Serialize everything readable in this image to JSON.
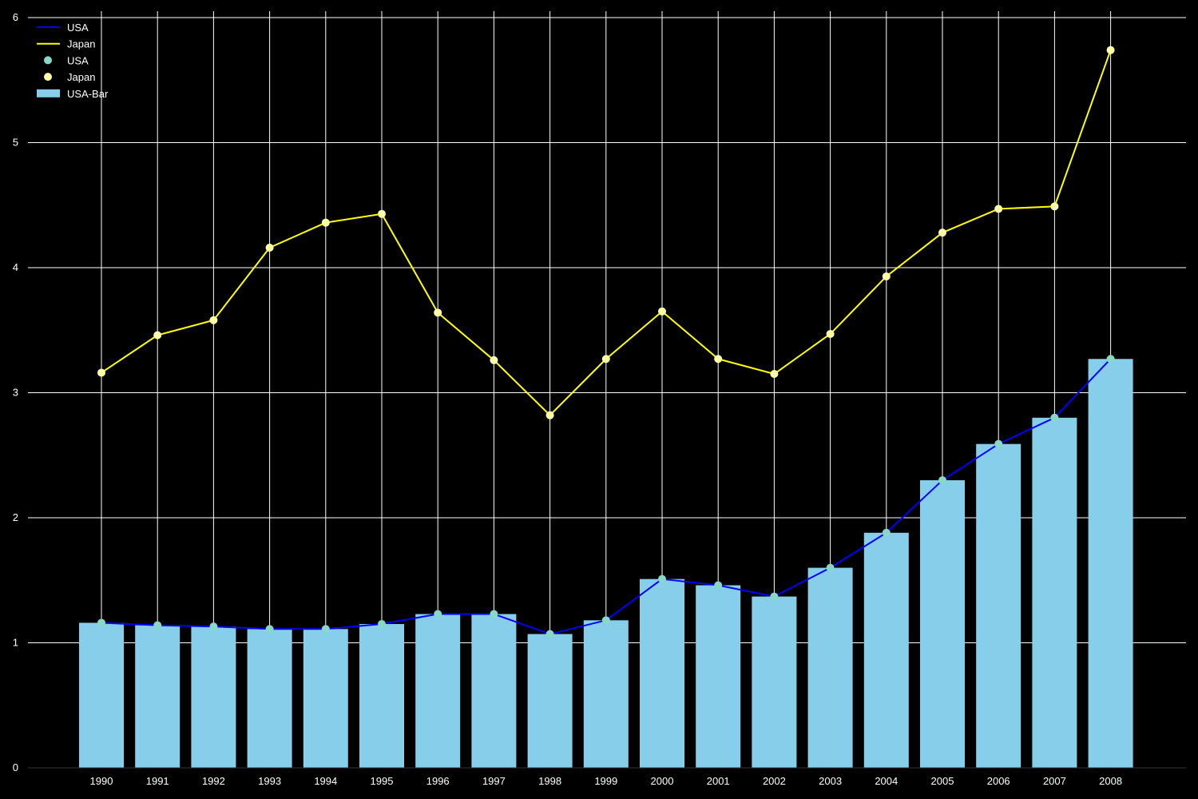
{
  "chart_data": {
    "type": "bar",
    "title": "",
    "xlabel": "",
    "ylabel": "",
    "x": [
      "1990",
      "1991",
      "1992",
      "1993",
      "1994",
      "1995",
      "1996",
      "1997",
      "1998",
      "1999",
      "2000",
      "2001",
      "2002",
      "2003",
      "2004",
      "2005",
      "2006",
      "2007",
      "2008"
    ],
    "ylim": [
      0,
      6
    ],
    "yticks": [
      0,
      1,
      2,
      3,
      4,
      5,
      6
    ],
    "grid": true,
    "legend_position": "top-left",
    "background": "#000000",
    "series": [
      {
        "name": "USA",
        "kind": "line",
        "color": "#0000ff",
        "values": [
          1.16,
          1.14,
          1.13,
          1.11,
          1.11,
          1.15,
          1.23,
          1.23,
          1.07,
          1.18,
          1.51,
          1.46,
          1.37,
          1.6,
          1.88,
          2.3,
          2.59,
          2.8,
          3.27
        ]
      },
      {
        "name": "Japan",
        "kind": "line",
        "color": "#ffff00",
        "values": [
          3.16,
          3.46,
          3.58,
          4.16,
          4.36,
          4.43,
          3.64,
          3.26,
          2.82,
          3.27,
          3.65,
          3.27,
          3.15,
          3.47,
          3.93,
          4.28,
          4.47,
          4.49,
          5.74
        ]
      },
      {
        "name": "USA",
        "kind": "scatter",
        "color": "#88d8c8",
        "values": [
          1.16,
          1.14,
          1.13,
          1.11,
          1.11,
          1.15,
          1.23,
          1.23,
          1.07,
          1.18,
          1.51,
          1.46,
          1.37,
          1.6,
          1.88,
          2.3,
          2.59,
          2.8,
          3.27
        ]
      },
      {
        "name": "Japan",
        "kind": "scatter",
        "color": "#ffffa8",
        "values": [
          3.16,
          3.46,
          3.58,
          4.16,
          4.36,
          4.43,
          3.64,
          3.26,
          2.82,
          3.27,
          3.65,
          3.27,
          3.15,
          3.47,
          3.93,
          4.28,
          4.47,
          4.49,
          5.74
        ]
      },
      {
        "name": "USA-Bar",
        "kind": "bar",
        "color": "#87ceeb",
        "values": [
          1.16,
          1.14,
          1.13,
          1.11,
          1.11,
          1.15,
          1.23,
          1.23,
          1.07,
          1.18,
          1.51,
          1.46,
          1.37,
          1.6,
          1.88,
          2.3,
          2.59,
          2.8,
          3.27
        ]
      }
    ]
  }
}
